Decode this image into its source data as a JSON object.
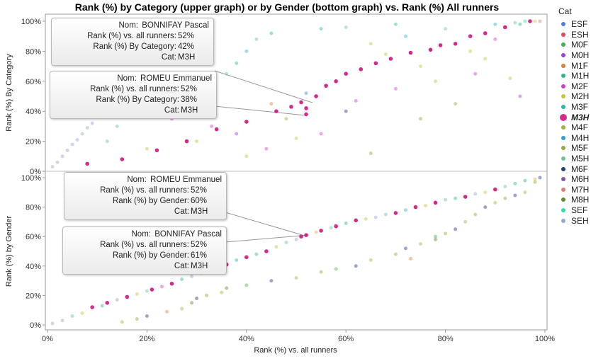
{
  "chart_data": [
    {
      "type": "scatter",
      "panel": "upper",
      "title": "Rank (%) by Category (upper graph) or by Gender (bottom graph) vs. Rank (%) All runners",
      "xlabel": "Rank (%) vs. all runners",
      "ylabel": "Rank (%) By Category",
      "xlim": [
        0,
        100
      ],
      "ylim": [
        0,
        100
      ],
      "yticks": [
        "0%",
        "20%",
        "40%",
        "60%",
        "80%",
        "100%"
      ],
      "points": [
        [
          8,
          5,
          9
        ],
        [
          15,
          8,
          9
        ],
        [
          22,
          14,
          9
        ],
        [
          28,
          20,
          9
        ],
        [
          34,
          28,
          9
        ],
        [
          40,
          33,
          9
        ],
        [
          46,
          40,
          9
        ],
        [
          49,
          43,
          9
        ],
        [
          51,
          46,
          9
        ],
        [
          52,
          38,
          9
        ],
        [
          52,
          42,
          9
        ],
        [
          54,
          50,
          9
        ],
        [
          56,
          57,
          9
        ],
        [
          58,
          60,
          9
        ],
        [
          60,
          65,
          9
        ],
        [
          63,
          68,
          9
        ],
        [
          66,
          72,
          9
        ],
        [
          69,
          75,
          9
        ],
        [
          73,
          79,
          9
        ],
        [
          77,
          81,
          9
        ],
        [
          79,
          84,
          9
        ],
        [
          82,
          85,
          9
        ],
        [
          85,
          90,
          9
        ],
        [
          88,
          92,
          9
        ],
        [
          92,
          96,
          9
        ],
        [
          97,
          100,
          9
        ],
        [
          1,
          3,
          19
        ],
        [
          2,
          6,
          19
        ],
        [
          3,
          10,
          19
        ],
        [
          4,
          14,
          19
        ],
        [
          5,
          18,
          19
        ],
        [
          6,
          21,
          19
        ],
        [
          7,
          25,
          19
        ],
        [
          8,
          29,
          19
        ],
        [
          9,
          32,
          19
        ],
        [
          12,
          20,
          13
        ],
        [
          14,
          30,
          13
        ],
        [
          18,
          45,
          5
        ],
        [
          24,
          52,
          13
        ],
        [
          28,
          48,
          13
        ],
        [
          32,
          55,
          5
        ],
        [
          36,
          65,
          13
        ],
        [
          38,
          72,
          5
        ],
        [
          40,
          80,
          8
        ],
        [
          42,
          88,
          13
        ],
        [
          45,
          92,
          5
        ],
        [
          55,
          95,
          8
        ],
        [
          60,
          96,
          13
        ],
        [
          70,
          98,
          5
        ],
        [
          72,
          90,
          8
        ],
        [
          80,
          95,
          13
        ],
        [
          90,
          98,
          8
        ],
        [
          95,
          98,
          5
        ],
        [
          65,
          85,
          7
        ],
        [
          68,
          78,
          7
        ],
        [
          75,
          70,
          7
        ],
        [
          78,
          60,
          7
        ],
        [
          85,
          80,
          7
        ],
        [
          88,
          75,
          7
        ],
        [
          93,
          62,
          7
        ],
        [
          50,
          22,
          7
        ],
        [
          40,
          10,
          7
        ],
        [
          30,
          20,
          7
        ],
        [
          20,
          15,
          7
        ],
        [
          25,
          35,
          6
        ],
        [
          33,
          30,
          6
        ],
        [
          44,
          15,
          6
        ],
        [
          55,
          25,
          6
        ],
        [
          62,
          47,
          6
        ],
        [
          70,
          55,
          6
        ],
        [
          86,
          65,
          6
        ],
        [
          90,
          88,
          6
        ],
        [
          65,
          12,
          12
        ],
        [
          75,
          35,
          12
        ],
        [
          82,
          45,
          12
        ],
        [
          95,
          50,
          15
        ],
        [
          60,
          40,
          14
        ],
        [
          45,
          45,
          4
        ],
        [
          48,
          35,
          10
        ],
        [
          52,
          52,
          0
        ],
        [
          38,
          25,
          3
        ],
        [
          98,
          100,
          7
        ],
        [
          99,
          100,
          16
        ],
        [
          96,
          100,
          18
        ],
        [
          94,
          99,
          13
        ]
      ]
    },
    {
      "type": "scatter",
      "panel": "lower",
      "xlabel": "Rank (%) vs. all runners",
      "ylabel": "Rank (%) by Gender",
      "xlim": [
        0,
        100
      ],
      "ylim": [
        0,
        100
      ],
      "xticks": [
        "0%",
        "20%",
        "40%",
        "60%",
        "80%",
        "100%"
      ],
      "yticks": [
        "0%",
        "20%",
        "40%",
        "60%",
        "80%",
        "100%"
      ],
      "points": [
        [
          9,
          12,
          9
        ],
        [
          12,
          15,
          9
        ],
        [
          16,
          19,
          9
        ],
        [
          21,
          24,
          9
        ],
        [
          25,
          28,
          9
        ],
        [
          32,
          37,
          9
        ],
        [
          36,
          41,
          9
        ],
        [
          40,
          46,
          9
        ],
        [
          44,
          50,
          9
        ],
        [
          51,
          60,
          9
        ],
        [
          52,
          61,
          9
        ],
        [
          55,
          64,
          9
        ],
        [
          58,
          67,
          9
        ],
        [
          62,
          71,
          9
        ],
        [
          70,
          76,
          9
        ],
        [
          74,
          80,
          9
        ],
        [
          78,
          83,
          9
        ],
        [
          84,
          87,
          9
        ],
        [
          90,
          92,
          9
        ],
        [
          1,
          1,
          19
        ],
        [
          3,
          3,
          19
        ],
        [
          5,
          6,
          13
        ],
        [
          7,
          8,
          7
        ],
        [
          11,
          13,
          5
        ],
        [
          14,
          17,
          19
        ],
        [
          18,
          21,
          7
        ],
        [
          20,
          23,
          13
        ],
        [
          23,
          26,
          6
        ],
        [
          27,
          31,
          5
        ],
        [
          29,
          33,
          19
        ],
        [
          31,
          35,
          7
        ],
        [
          34,
          39,
          13
        ],
        [
          38,
          44,
          8
        ],
        [
          42,
          48,
          5
        ],
        [
          46,
          53,
          7
        ],
        [
          48,
          56,
          13
        ],
        [
          50,
          58,
          19
        ],
        [
          54,
          63,
          7
        ],
        [
          57,
          66,
          13
        ],
        [
          60,
          69,
          5
        ],
        [
          64,
          72,
          7
        ],
        [
          66,
          73,
          19
        ],
        [
          68,
          75,
          13
        ],
        [
          72,
          78,
          8
        ],
        [
          76,
          81,
          7
        ],
        [
          80,
          85,
          13
        ],
        [
          82,
          86,
          5
        ],
        [
          86,
          89,
          19
        ],
        [
          88,
          90,
          7
        ],
        [
          92,
          94,
          13
        ],
        [
          94,
          96,
          8
        ],
        [
          96,
          98,
          5
        ],
        [
          98,
          99,
          7
        ],
        [
          15,
          2,
          10
        ],
        [
          18,
          4,
          12
        ],
        [
          20,
          6,
          14
        ],
        [
          24,
          9,
          4
        ],
        [
          27,
          11,
          10
        ],
        [
          29,
          15,
          17
        ],
        [
          30,
          18,
          14
        ],
        [
          32,
          20,
          12
        ],
        [
          35,
          22,
          10
        ],
        [
          36,
          25,
          17
        ],
        [
          40,
          27,
          2
        ],
        [
          45,
          30,
          14
        ],
        [
          50,
          32,
          10
        ],
        [
          55,
          36,
          12
        ],
        [
          58,
          38,
          2
        ],
        [
          62,
          40,
          14
        ],
        [
          65,
          44,
          10
        ],
        [
          70,
          48,
          12
        ],
        [
          72,
          52,
          14
        ],
        [
          75,
          55,
          10
        ],
        [
          78,
          58,
          17
        ],
        [
          80,
          62,
          12
        ],
        [
          82,
          65,
          14
        ],
        [
          84,
          70,
          10
        ],
        [
          86,
          75,
          12
        ],
        [
          88,
          80,
          14
        ],
        [
          90,
          83,
          10
        ],
        [
          92,
          86,
          12
        ],
        [
          94,
          88,
          14
        ],
        [
          96,
          90,
          10
        ],
        [
          98,
          97,
          12
        ],
        [
          99,
          100,
          14
        ],
        [
          73,
          45,
          4
        ],
        [
          78,
          60,
          2
        ]
      ]
    }
  ],
  "legend": {
    "title": "Cat",
    "selected": "M3H",
    "items": [
      {
        "label": "ESF",
        "color": "#4a7ee0"
      },
      {
        "label": "ESH",
        "color": "#e0485a"
      },
      {
        "label": "M0F",
        "color": "#3cb550"
      },
      {
        "label": "M0H",
        "color": "#9b3fe0"
      },
      {
        "label": "M1F",
        "color": "#d9803a"
      },
      {
        "label": "M1H",
        "color": "#2fb890"
      },
      {
        "label": "M2F",
        "color": "#d33ccc"
      },
      {
        "label": "M2H",
        "color": "#c9c23a"
      },
      {
        "label": "M3F",
        "color": "#2ab3b8"
      },
      {
        "label": "M3H",
        "color": "#d42a8c"
      },
      {
        "label": "M4F",
        "color": "#9cb53a"
      },
      {
        "label": "M4H",
        "color": "#2f9fcf"
      },
      {
        "label": "M5F",
        "color": "#93a83a"
      },
      {
        "label": "M5H",
        "color": "#6fc49a"
      },
      {
        "label": "M6F",
        "color": "#1f3f80"
      },
      {
        "label": "M6H",
        "color": "#8e52a8"
      },
      {
        "label": "M7H",
        "color": "#e08070"
      },
      {
        "label": "M8H",
        "color": "#5f8a3a"
      },
      {
        "label": "SEF",
        "color": "#2ee0a0"
      },
      {
        "label": "SEH",
        "color": "#9aa4d0"
      }
    ]
  },
  "tooltips": {
    "upper1": {
      "nom_label": "Nom:",
      "nom": "BONNIFAY Pascal",
      "l1": "Rank (%) vs. all runners:",
      "v1": "52%",
      "l2": "Rank (%) By Category:",
      "v2": "42%",
      "l3": "Cat:",
      "v3": "M3H"
    },
    "upper2": {
      "nom_label": "Nom:",
      "nom": "ROMEU Emmanuel",
      "l1": "Rank (%) vs. all runners:",
      "v1": "52%",
      "l2": "Rank (%) By Category:",
      "v2": "38%",
      "l3": "Cat:",
      "v3": "M3H"
    },
    "lower1": {
      "nom_label": "Nom:",
      "nom": "ROMEU Emmanuel",
      "l1": "Rank (%) vs. all runners:",
      "v1": "52%",
      "l2": "Rank (%) by Gender:",
      "v2": "60%",
      "l3": "Cat:",
      "v3": "M3H"
    },
    "lower2": {
      "nom_label": "Nom:",
      "nom": "BONNIFAY Pascal",
      "l1": "Rank (%) vs. all runners:",
      "v1": "52%",
      "l2": "Rank (%) by Gender:",
      "v2": "61%",
      "l3": "Cat:",
      "v3": "M3H"
    }
  }
}
